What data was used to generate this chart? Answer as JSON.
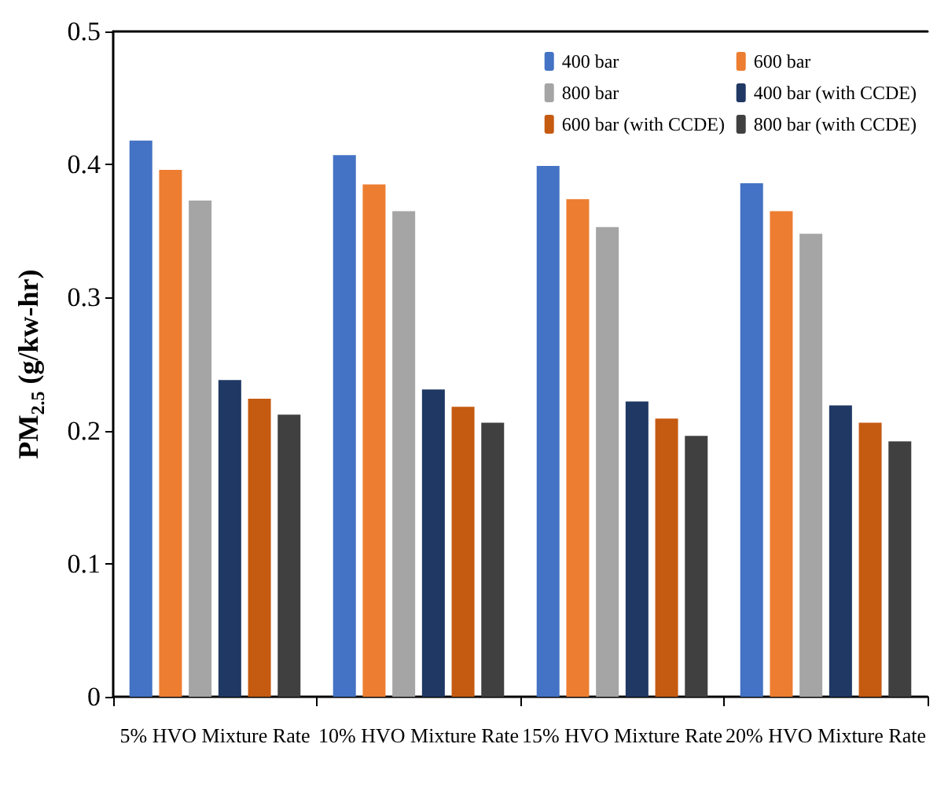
{
  "chart_data": {
    "type": "bar",
    "ylabel": "PM$_{2.5}$ (g/kw-hr)",
    "categories": [
      "5% HVO Mixture Rate",
      "10% HVO Mixture Rate",
      "15% HVO Mixture Rate",
      "20% HVO Mixture Rate"
    ],
    "series": [
      {
        "name": "400 bar",
        "color": "#4472c4",
        "values": [
          0.418,
          0.407,
          0.399,
          0.386
        ]
      },
      {
        "name": "600 bar",
        "color": "#ed7d31",
        "values": [
          0.396,
          0.385,
          0.374,
          0.365
        ]
      },
      {
        "name": "800 bar",
        "color": "#a5a5a5",
        "values": [
          0.373,
          0.365,
          0.353,
          0.348
        ]
      },
      {
        "name": "400 bar (with CCDE)",
        "color": "#203864",
        "values": [
          0.238,
          0.231,
          0.222,
          0.219
        ]
      },
      {
        "name": "600 bar (with CCDE)",
        "color": "#c55a11",
        "values": [
          0.224,
          0.218,
          0.209,
          0.206
        ]
      },
      {
        "name": "800 bar (with CCDE)",
        "color": "#404040",
        "values": [
          0.212,
          0.206,
          0.196,
          0.192
        ]
      }
    ],
    "ylim": [
      0,
      0.5
    ],
    "yticks": [
      0,
      0.1,
      0.2,
      0.3,
      0.4,
      0.5
    ],
    "grid": false,
    "legend": "top right"
  }
}
